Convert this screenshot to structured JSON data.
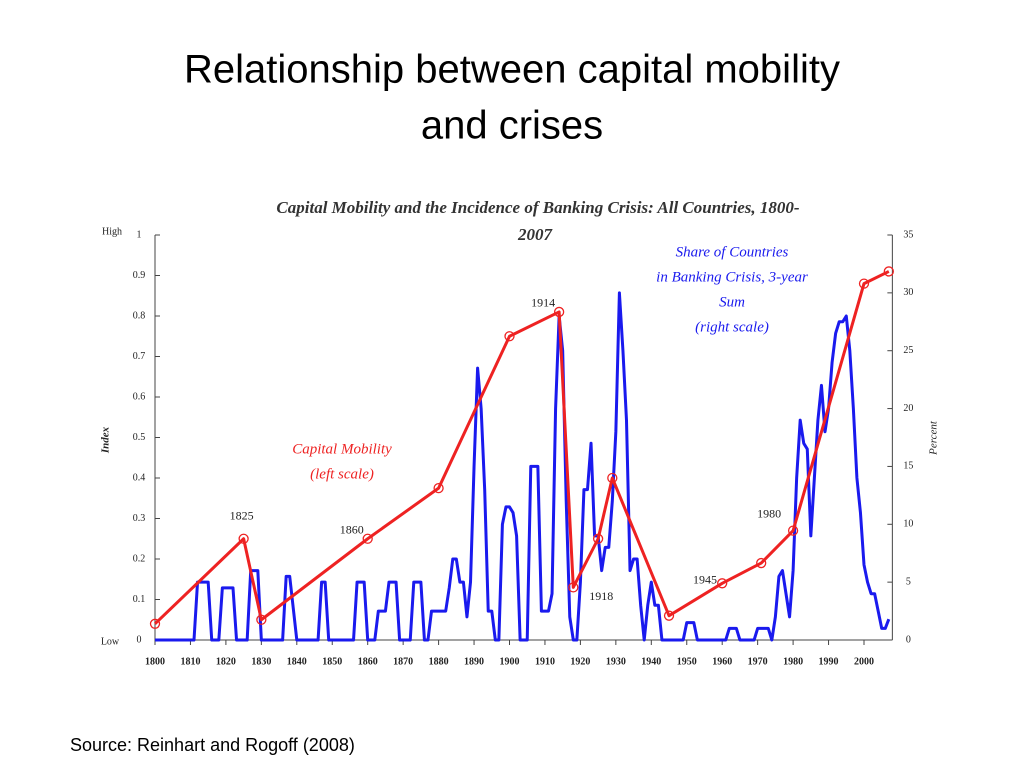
{
  "slide": {
    "title_lines": [
      "Relationship between capital mobility",
      "and crises"
    ],
    "source": "Source: Reinhart and Rogoff (2008)"
  },
  "chart_data": {
    "type": "line",
    "title_lines": [
      "Capital Mobility and the Incidence of Banking Crisis: All Countries, 1800-",
      "2007"
    ],
    "ylabel": "Index",
    "y2label": "Percent",
    "y_high_label": "High",
    "y_low_label": "Low",
    "xlim": [
      1800,
      2008
    ],
    "xticks": [
      1800,
      1810,
      1820,
      1830,
      1840,
      1850,
      1860,
      1870,
      1880,
      1890,
      1900,
      1910,
      1920,
      1930,
      1940,
      1950,
      1960,
      1970,
      1980,
      1990,
      2000
    ],
    "ylim": [
      0,
      1
    ],
    "yticks": [
      0,
      0.1,
      0.2,
      0.3,
      0.4,
      0.5,
      0.6,
      0.7,
      0.8,
      0.9,
      1
    ],
    "y2lim": [
      0,
      35
    ],
    "y2ticks": [
      0,
      5,
      10,
      15,
      20,
      25,
      30,
      35
    ],
    "series": [
      {
        "name_lines": [
          "Capital Mobility",
          "(left scale)"
        ],
        "color": "#ee2222",
        "markers": true,
        "x": [
          1800,
          1825,
          1830,
          1860,
          1880,
          1900,
          1914,
          1918,
          1925,
          1929,
          1945,
          1960,
          1971,
          1980,
          2000,
          2007
        ],
        "values": [
          0.04,
          0.25,
          0.05,
          0.25,
          0.375,
          0.75,
          0.81,
          0.13,
          0.25,
          0.4,
          0.06,
          0.14,
          0.19,
          0.27,
          0.88,
          0.91
        ],
        "point_labels": [
          null,
          "1825",
          null,
          "1860",
          null,
          null,
          "1914",
          "1918",
          null,
          null,
          "1945",
          null,
          null,
          "1980",
          null,
          null
        ]
      },
      {
        "name_lines": [
          "Share of Countries",
          "in Banking Crisis, 3-year",
          "Sum",
          "(right scale)"
        ],
        "color": "#1a1aee",
        "axis": "y2",
        "markers": false,
        "x": [
          1800,
          1811,
          1812,
          1815,
          1816,
          1818,
          1819,
          1822,
          1823,
          1826,
          1827,
          1829,
          1830,
          1836,
          1837,
          1838,
          1840,
          1846,
          1847,
          1848,
          1849,
          1856,
          1857,
          1859,
          1860,
          1862,
          1863,
          1865,
          1866,
          1868,
          1869,
          1872,
          1873,
          1875,
          1876,
          1877,
          1878,
          1882,
          1883,
          1884,
          1885,
          1886,
          1887,
          1888,
          1889,
          1890,
          1891,
          1892,
          1893,
          1894,
          1895,
          1896,
          1897,
          1898,
          1899,
          1900,
          1901,
          1902,
          1903,
          1905,
          1906,
          1908,
          1909,
          1911,
          1912,
          1913,
          1914,
          1915,
          1916,
          1917,
          1918,
          1919,
          1920,
          1921,
          1922,
          1923,
          1924,
          1925,
          1926,
          1927,
          1928,
          1929,
          1930,
          1931,
          1932,
          1933,
          1934,
          1935,
          1936,
          1937,
          1938,
          1939,
          1940,
          1941,
          1942,
          1943,
          1949,
          1950,
          1952,
          1953,
          1961,
          1962,
          1964,
          1965,
          1969,
          1970,
          1973,
          1974,
          1975,
          1976,
          1977,
          1978,
          1979,
          1980,
          1981,
          1982,
          1983,
          1984,
          1985,
          1986,
          1987,
          1988,
          1989,
          1990,
          1991,
          1992,
          1993,
          1994,
          1995,
          1996,
          1997,
          1998,
          1999,
          2000,
          2001,
          2002,
          2003,
          2004,
          2005,
          2006,
          2007
        ],
        "values": [
          0,
          0,
          5,
          5,
          0,
          0,
          4.5,
          4.5,
          0,
          0,
          6,
          6,
          0,
          0,
          5.5,
          5.5,
          0,
          0,
          5,
          5,
          0,
          0,
          5,
          5,
          0,
          0,
          2.5,
          2.5,
          5,
          5,
          0,
          0,
          5,
          5,
          0,
          0,
          2.5,
          2.5,
          4.5,
          7,
          7,
          5,
          5,
          2,
          5,
          15,
          23.5,
          20,
          13,
          2.5,
          2.5,
          0,
          0,
          10,
          11.5,
          11.5,
          11,
          9,
          0,
          0,
          15,
          15,
          2.5,
          2.5,
          4,
          20,
          28,
          25,
          12,
          2,
          0,
          0,
          5,
          13,
          13,
          17,
          9,
          9,
          6,
          8,
          8,
          12,
          18,
          30,
          25,
          19,
          6,
          7,
          7,
          3,
          0,
          3,
          5,
          3,
          3,
          0,
          0,
          1.5,
          1.5,
          0,
          0,
          1,
          1,
          0,
          0,
          1,
          1,
          0,
          2,
          5.5,
          6,
          4,
          2,
          6,
          14,
          19,
          17,
          16.5,
          9,
          14,
          19,
          22,
          18,
          20,
          24,
          26.5,
          27.5,
          27.5,
          28,
          25,
          20,
          14,
          11,
          6.5,
          5,
          4,
          4,
          2.5,
          1,
          1,
          1.8
        ]
      }
    ]
  }
}
